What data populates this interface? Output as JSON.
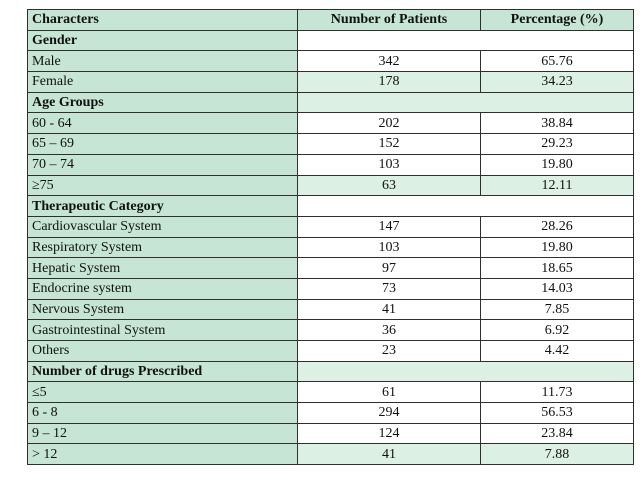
{
  "headers": [
    "Characters",
    "Number of Patients",
    "Percentage (%)"
  ],
  "sections": [
    {
      "title": "Gender",
      "title_fill": "white",
      "rows": [
        {
          "label": "Male",
          "count": "342",
          "percent": "65.76",
          "fill": "white"
        },
        {
          "label": "Female",
          "count": "178",
          "percent": "34.23",
          "fill": "green"
        }
      ]
    },
    {
      "title": "Age Groups",
      "title_fill": "green",
      "rows": [
        {
          "label": "60 - 64",
          "count": "202",
          "percent": "38.84",
          "fill": "white"
        },
        {
          "label": "65 – 69",
          "count": "152",
          "percent": "29.23",
          "fill": "white"
        },
        {
          "label": "70 – 74",
          "count": "103",
          "percent": "19.80",
          "fill": "white"
        },
        {
          "label": "≥75",
          "count": "63",
          "percent": "12.11",
          "fill": "green"
        }
      ]
    },
    {
      "title": "Therapeutic Category",
      "title_fill": "white",
      "rows": [
        {
          "label": "Cardiovascular System",
          "count": "147",
          "percent": "28.26",
          "fill": "white"
        },
        {
          "label": "Respiratory System",
          "count": "103",
          "percent": "19.80",
          "fill": "white"
        },
        {
          "label": "Hepatic System",
          "count": "97",
          "percent": "18.65",
          "fill": "white"
        },
        {
          "label": "Endocrine system",
          "count": "73",
          "percent": "14.03",
          "fill": "white"
        },
        {
          "label": "Nervous System",
          "count": "41",
          "percent": "7.85",
          "fill": "white"
        },
        {
          "label": "Gastrointestinal System",
          "count": "36",
          "percent": "6.92",
          "fill": "white"
        },
        {
          "label": "Others",
          "count": "23",
          "percent": "4.42",
          "fill": "white"
        }
      ]
    },
    {
      "title": "Number of drugs Prescribed",
      "title_fill": "green",
      "rows": [
        {
          "label": "≤5",
          "count": "61",
          "percent": "11.73",
          "fill": "white"
        },
        {
          "label": "6 - 8",
          "count": "294",
          "percent": "56.53",
          "fill": "white"
        },
        {
          "label": "9 – 12",
          "count": "124",
          "percent": "23.84",
          "fill": "white"
        },
        {
          "label": "> 12",
          "count": "41",
          "percent": "7.88",
          "fill": "green"
        }
      ]
    }
  ],
  "colors": {
    "label_fill": "#c6e5d4",
    "alt_fill": "#ddf0e4",
    "white_fill": "#ffffff",
    "border": "#2f2f2f"
  }
}
